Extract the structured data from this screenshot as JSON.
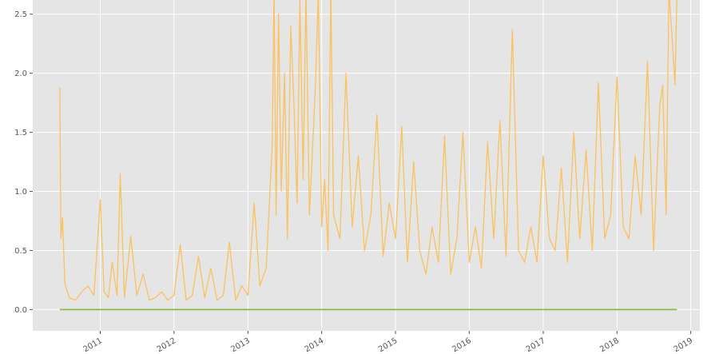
{
  "chart_data": {
    "type": "line",
    "title": "",
    "xlabel": "",
    "ylabel": "",
    "x_range": [
      "2010-02-01",
      "2019-02-15"
    ],
    "ylim": [
      -0.18,
      2.62
    ],
    "y_ticks": [
      0.0,
      0.5,
      1.0,
      1.5,
      2.0,
      2.5
    ],
    "y_tick_labels": [
      "0.0",
      "0.5",
      "1.0",
      "1.5",
      "2.0",
      "2.5"
    ],
    "x_ticks": [
      "2011-01-01",
      "2012-01-01",
      "2013-01-01",
      "2014-01-01",
      "2015-01-01",
      "2016-01-01",
      "2017-01-01",
      "2018-01-01",
      "2019-01-01"
    ],
    "x_tick_labels": [
      "2011",
      "2012",
      "2013",
      "2014",
      "2015",
      "2016",
      "2017",
      "2018",
      "2019"
    ],
    "grid": true,
    "style": {
      "background": "#e5e5e5",
      "grid_color": "#ffffff",
      "text_color": "#555555"
    },
    "series": [
      {
        "color": "#fbc15e",
        "x": [
          "2010-06-15",
          "2010-06-20",
          "2010-06-28",
          "2010-07-10",
          "2010-08-01",
          "2010-09-01",
          "2010-10-01",
          "2010-11-01",
          "2010-12-01",
          "2011-01-01",
          "2011-01-20",
          "2011-02-10",
          "2011-03-01",
          "2011-03-25",
          "2011-04-10",
          "2011-05-01",
          "2011-06-01",
          "2011-07-01",
          "2011-08-01",
          "2011-09-01",
          "2011-10-01",
          "2011-11-01",
          "2011-12-01",
          "2012-01-01",
          "2012-02-01",
          "2012-03-01",
          "2012-04-01",
          "2012-05-01",
          "2012-06-01",
          "2012-07-01",
          "2012-08-01",
          "2012-09-01",
          "2012-10-01",
          "2012-11-01",
          "2012-12-01",
          "2013-01-01",
          "2013-02-01",
          "2013-03-01",
          "2013-04-01",
          "2013-05-01",
          "2013-05-10",
          "2013-05-20",
          "2013-06-01",
          "2013-06-15",
          "2013-07-01",
          "2013-07-15",
          "2013-08-01",
          "2013-08-15",
          "2013-09-01",
          "2013-09-15",
          "2013-10-01",
          "2013-10-15",
          "2013-11-01",
          "2013-11-15",
          "2013-12-01",
          "2013-12-15",
          "2014-01-01",
          "2014-01-15",
          "2014-02-01",
          "2014-02-15",
          "2014-03-01",
          "2014-04-01",
          "2014-05-01",
          "2014-06-01",
          "2014-07-01",
          "2014-08-01",
          "2014-09-01",
          "2014-10-01",
          "2014-11-01",
          "2014-12-01",
          "2015-01-01",
          "2015-02-01",
          "2015-03-01",
          "2015-04-01",
          "2015-05-01",
          "2015-06-01",
          "2015-07-01",
          "2015-08-01",
          "2015-09-01",
          "2015-10-01",
          "2015-11-01",
          "2015-12-01",
          "2016-01-01",
          "2016-02-01",
          "2016-03-01",
          "2016-04-01",
          "2016-05-01",
          "2016-06-01",
          "2016-07-01",
          "2016-08-01",
          "2016-09-01",
          "2016-10-01",
          "2016-11-01",
          "2016-12-01",
          "2017-01-01",
          "2017-02-01",
          "2017-03-01",
          "2017-04-01",
          "2017-05-01",
          "2017-06-01",
          "2017-07-01",
          "2017-08-01",
          "2017-09-01",
          "2017-10-01",
          "2017-11-01",
          "2017-12-01",
          "2018-01-01",
          "2018-02-01",
          "2018-03-01",
          "2018-04-01",
          "2018-05-01",
          "2018-06-01",
          "2018-07-01",
          "2018-08-01",
          "2018-08-15",
          "2018-09-01",
          "2018-09-15",
          "2018-10-01",
          "2018-10-15",
          "2018-10-25"
        ],
        "y": [
          1.88,
          0.6,
          0.78,
          0.22,
          0.1,
          0.08,
          0.15,
          0.2,
          0.12,
          0.93,
          0.15,
          0.1,
          0.4,
          0.12,
          1.15,
          0.1,
          0.62,
          0.12,
          0.3,
          0.08,
          0.1,
          0.15,
          0.08,
          0.12,
          0.55,
          0.08,
          0.12,
          0.45,
          0.1,
          0.35,
          0.08,
          0.12,
          0.57,
          0.08,
          0.2,
          0.12,
          0.9,
          0.2,
          0.35,
          1.4,
          2.7,
          0.8,
          2.5,
          1.0,
          2.0,
          0.6,
          2.4,
          1.8,
          0.9,
          2.62,
          1.1,
          2.7,
          0.8,
          1.3,
          1.9,
          2.7,
          0.7,
          1.1,
          0.5,
          2.7,
          0.8,
          0.6,
          2.0,
          0.7,
          1.3,
          0.5,
          0.8,
          1.65,
          0.45,
          0.9,
          0.6,
          1.55,
          0.4,
          1.25,
          0.5,
          0.3,
          0.7,
          0.4,
          1.47,
          0.3,
          0.6,
          1.5,
          0.4,
          0.7,
          0.35,
          1.42,
          0.6,
          1.6,
          0.45,
          2.37,
          0.5,
          0.4,
          0.7,
          0.4,
          1.3,
          0.6,
          0.5,
          1.2,
          0.4,
          1.5,
          0.6,
          1.35,
          0.5,
          1.92,
          0.6,
          0.8,
          1.97,
          0.7,
          0.6,
          1.3,
          0.8,
          2.1,
          0.5,
          1.73,
          1.9,
          0.8,
          2.7,
          2.3,
          1.9,
          2.7
        ]
      },
      {
        "color": "#8eba42",
        "x": [
          "2010-06-15",
          "2018-10-25"
        ],
        "y": [
          0.0,
          0.0
        ]
      }
    ]
  }
}
